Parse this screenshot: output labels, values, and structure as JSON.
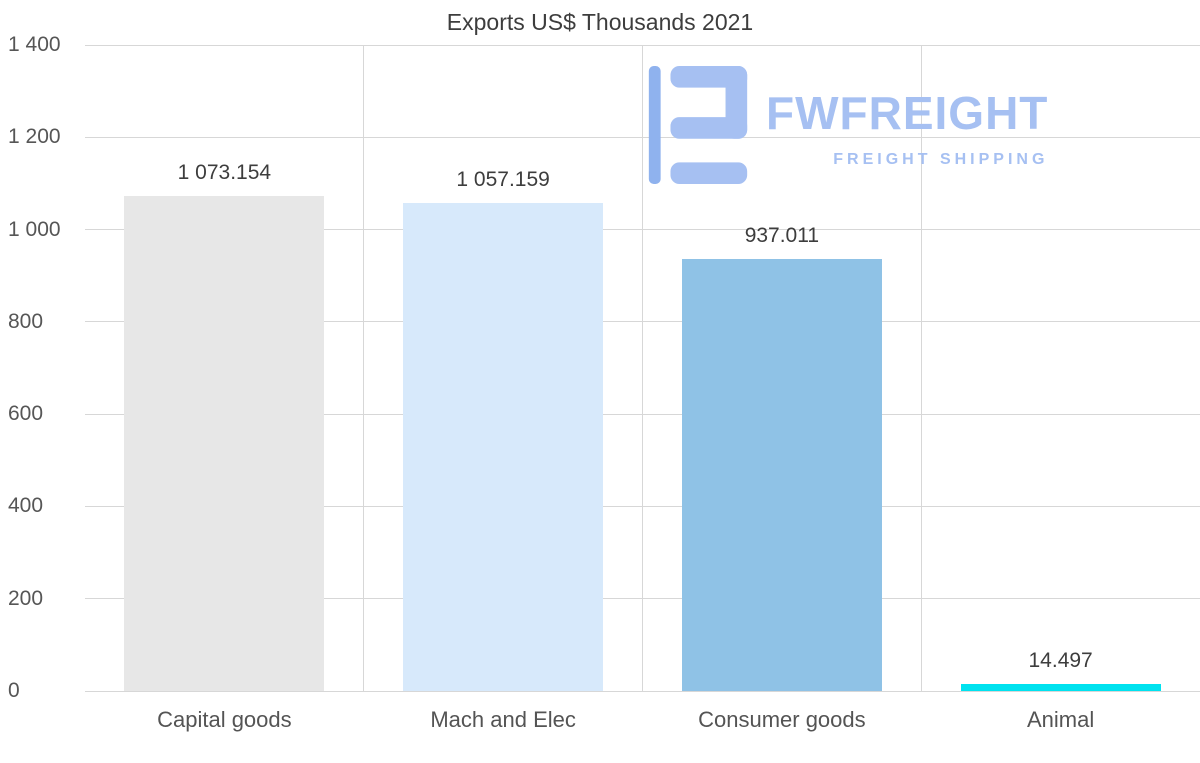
{
  "title": "Exports US$ Thousands 2021",
  "logo": {
    "name": "FWFREIGHT",
    "tagline": "FREIGHT SHIPPING",
    "color": "#a6c0f2",
    "icon_accent_color": "#8fb2ee",
    "icon": "fwfreight-logo-icon"
  },
  "chart_data": {
    "type": "bar",
    "title": "Exports US$ Thousands 2021",
    "categories": [
      "Capital goods",
      "Mach and Elec",
      "Consumer goods",
      "Animal"
    ],
    "values": [
      1073.154,
      1057.159,
      937.011,
      14.497
    ],
    "value_labels": [
      "1 073.154",
      "1 057.159",
      "937.011",
      "14.497"
    ],
    "bar_colors": [
      "#e7e7e7",
      "#d7e9fb",
      "#8fc2e6",
      "#00e2ef"
    ],
    "xlabel": "",
    "ylabel": "",
    "ylim": [
      0,
      1400
    ],
    "ytick_values": [
      0,
      200,
      400,
      600,
      800,
      1000,
      1200,
      1400
    ],
    "ytick_labels": [
      "0",
      "200",
      "400",
      "600",
      "800",
      "1 000",
      "1 200",
      "1 400"
    ],
    "grid": "horizontal gridlines at each y tick plus vertical category separators",
    "legend": "none",
    "gridline_color": "#d7d7d7",
    "text_colors": {
      "title": "#3d3d3d",
      "ticks": "#565656",
      "bar_values": "#3d3d3d",
      "categories": "#545454"
    }
  }
}
